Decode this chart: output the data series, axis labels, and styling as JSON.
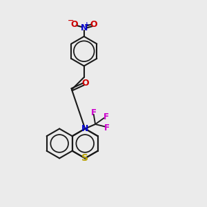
{
  "bg_color": "#ebebeb",
  "bond_color": "#1a1a1a",
  "N_color": "#0000cc",
  "O_color": "#cc0000",
  "S_color": "#b8a000",
  "F_color": "#cc00cc",
  "bond_width": 1.5,
  "figsize": [
    3.0,
    3.0
  ],
  "dpi": 100,
  "xlim": [
    0,
    10
  ],
  "ylim": [
    0,
    10
  ]
}
